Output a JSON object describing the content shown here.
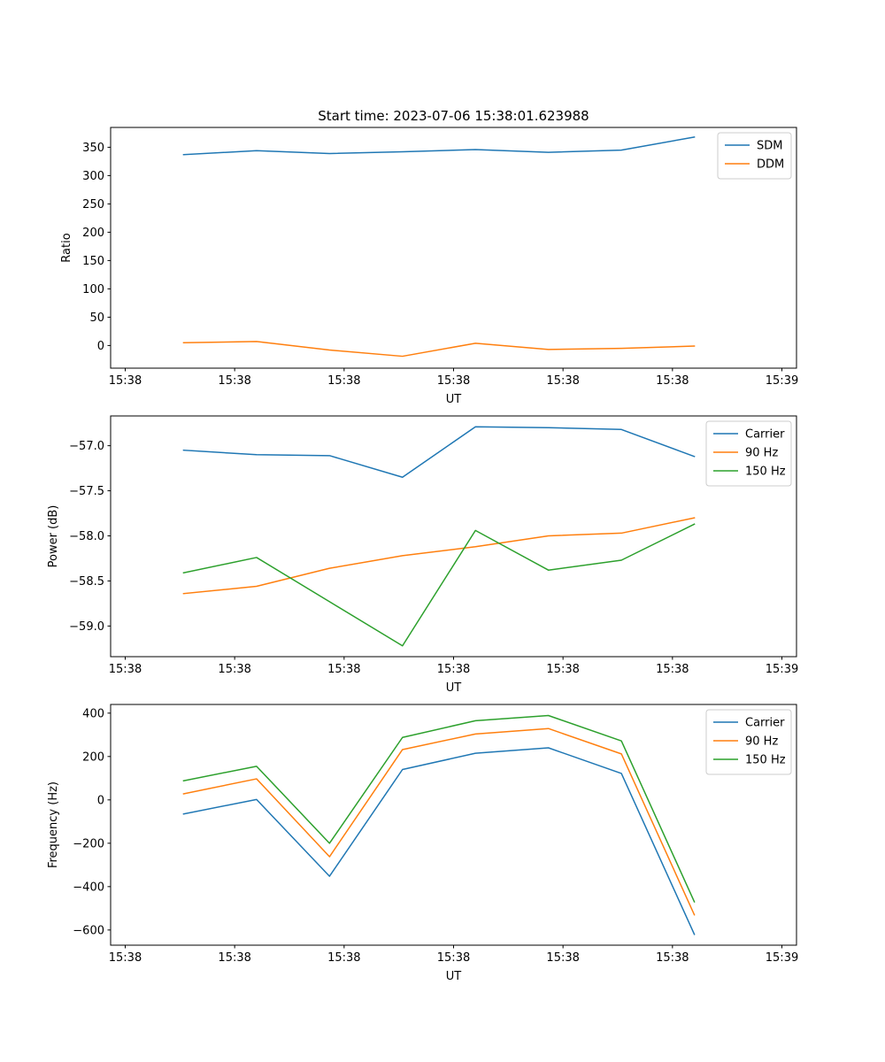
{
  "chart_data": [
    {
      "type": "line",
      "title": "Start time: 2023-07-06 15:38:01.623988",
      "xlabel": "UT",
      "ylabel": "Ratio",
      "x": [
        1,
        2,
        3,
        4,
        5,
        6,
        7,
        8
      ],
      "xlim": [
        0,
        9.4
      ],
      "x_ticks": [
        0.2,
        1.7,
        3.2,
        4.7,
        6.2,
        7.7,
        9.2
      ],
      "x_tick_labels": [
        "15:38",
        "15:38",
        "15:38",
        "15:38",
        "15:38",
        "15:38",
        "15:39"
      ],
      "ylim": [
        -40,
        385
      ],
      "y_ticks": [
        0,
        50,
        100,
        150,
        200,
        250,
        300,
        350
      ],
      "y_tick_labels": [
        "0",
        "50",
        "100",
        "150",
        "200",
        "250",
        "300",
        "350"
      ],
      "legend": "top-right",
      "series": [
        {
          "name": "SDM",
          "color": "#1f77b4",
          "values": [
            337,
            344,
            339,
            342,
            346,
            341,
            345,
            368
          ]
        },
        {
          "name": "DDM",
          "color": "#ff7f0e",
          "values": [
            5,
            7,
            -8,
            -19,
            4,
            -7,
            -5,
            -1
          ]
        }
      ]
    },
    {
      "type": "line",
      "title": "",
      "xlabel": "UT",
      "ylabel": "Power (dB)",
      "x": [
        1,
        2,
        3,
        4,
        5,
        6,
        7,
        8
      ],
      "xlim": [
        0,
        9.4
      ],
      "x_ticks": [
        0.2,
        1.7,
        3.2,
        4.7,
        6.2,
        7.7,
        9.2
      ],
      "x_tick_labels": [
        "15:38",
        "15:38",
        "15:38",
        "15:38",
        "15:38",
        "15:38",
        "15:39"
      ],
      "ylim": [
        -59.34,
        -56.67
      ],
      "y_ticks": [
        -57.0,
        -57.5,
        -58.0,
        -58.5,
        -59.0
      ],
      "y_tick_labels": [
        "−57.0",
        "−57.5",
        "−58.0",
        "−58.5",
        "−59.0"
      ],
      "legend": "top-right",
      "series": [
        {
          "name": "Carrier",
          "color": "#1f77b4",
          "values": [
            -57.05,
            -57.1,
            -57.11,
            -57.35,
            -56.79,
            -56.8,
            -56.82,
            -57.12
          ]
        },
        {
          "name": "90 Hz",
          "color": "#ff7f0e",
          "values": [
            -58.64,
            -58.56,
            -58.36,
            -58.22,
            -58.12,
            -58.0,
            -57.97,
            -57.8
          ]
        },
        {
          "name": "150 Hz",
          "color": "#2ca02c",
          "values": [
            -58.41,
            -58.24,
            -58.73,
            -59.22,
            -57.94,
            -58.38,
            -58.27,
            -57.87
          ]
        }
      ]
    },
    {
      "type": "line",
      "title": "",
      "xlabel": "UT",
      "ylabel": "Frequency (Hz)",
      "x": [
        1,
        2,
        3,
        4,
        5,
        6,
        7,
        8
      ],
      "xlim": [
        0,
        9.4
      ],
      "x_ticks": [
        0.2,
        1.7,
        3.2,
        4.7,
        6.2,
        7.7,
        9.2
      ],
      "x_tick_labels": [
        "15:38",
        "15:38",
        "15:38",
        "15:38",
        "15:38",
        "15:38",
        "15:39"
      ],
      "ylim": [
        -670,
        440
      ],
      "y_ticks": [
        400,
        200,
        0,
        -200,
        -400,
        -600
      ],
      "y_tick_labels": [
        "400",
        "200",
        "0",
        "−200",
        "−400",
        "−600"
      ],
      "legend": "top-right",
      "series": [
        {
          "name": "Carrier",
          "color": "#1f77b4",
          "values": [
            -65,
            2,
            -352,
            140,
            215,
            240,
            122,
            -620
          ]
        },
        {
          "name": "90 Hz",
          "color": "#ff7f0e",
          "values": [
            28,
            97,
            -262,
            232,
            304,
            329,
            212,
            -530
          ]
        },
        {
          "name": "150 Hz",
          "color": "#2ca02c",
          "values": [
            88,
            155,
            -200,
            288,
            365,
            389,
            272,
            -470
          ]
        }
      ]
    }
  ]
}
